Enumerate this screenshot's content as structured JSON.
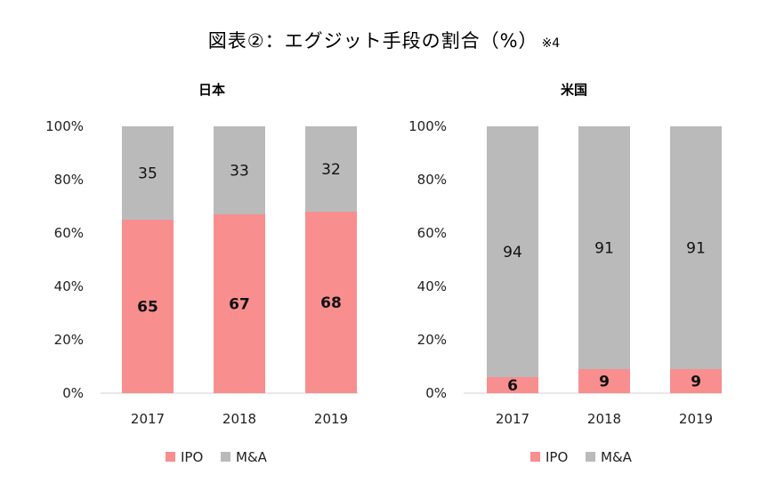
{
  "title": "図表②：エグジット手段の割合（%）",
  "title_note": "※4",
  "colors": {
    "IPO": "#F98E8E",
    "M&A": "#BABABA",
    "axis": "#d0d0d0"
  },
  "chart_data": [
    {
      "type": "bar",
      "stacked": true,
      "title": "日本",
      "categories": [
        "2017",
        "2018",
        "2019"
      ],
      "ylim": [
        0,
        100
      ],
      "yticks": [
        "0%",
        "20%",
        "40%",
        "60%",
        "80%",
        "100%"
      ],
      "series": [
        {
          "name": "IPO",
          "values": [
            65,
            67,
            68
          ]
        },
        {
          "name": "M&A",
          "values": [
            35,
            33,
            32
          ]
        }
      ],
      "legend": "bottom"
    },
    {
      "type": "bar",
      "stacked": true,
      "title": "米国",
      "categories": [
        "2017",
        "2018",
        "2019"
      ],
      "ylim": [
        0,
        100
      ],
      "yticks": [
        "0%",
        "20%",
        "40%",
        "60%",
        "80%",
        "100%"
      ],
      "series": [
        {
          "name": "IPO",
          "values": [
            6,
            9,
            9
          ]
        },
        {
          "name": "M&A",
          "values": [
            94,
            91,
            91
          ]
        }
      ],
      "legend": "bottom"
    }
  ]
}
